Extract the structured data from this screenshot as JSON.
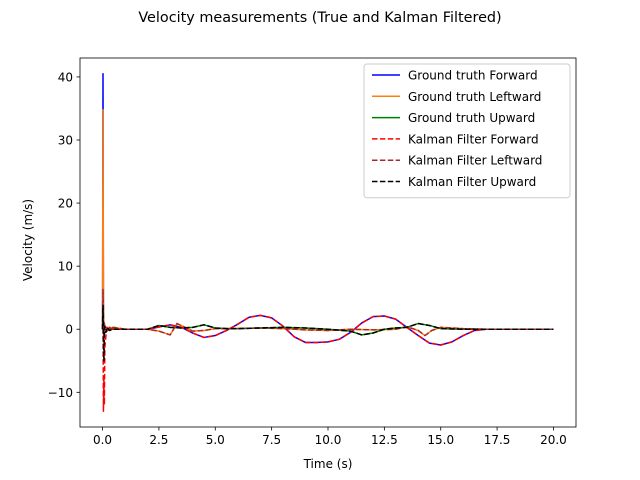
{
  "chart_data": {
    "type": "line",
    "title": "Velocity measurements (True and Kalman Filtered)",
    "xlabel": "Time (s)",
    "ylabel": "Velocity (m/s)",
    "xlim": [
      -1.0,
      21.0
    ],
    "ylim": [
      -15.5,
      43.0
    ],
    "xticks": [
      0.0,
      2.5,
      5.0,
      7.5,
      10.0,
      12.5,
      15.0,
      17.5,
      20.0
    ],
    "xtick_labels": [
      "0.0",
      "2.5",
      "5.0",
      "7.5",
      "10.0",
      "12.5",
      "15.0",
      "17.5",
      "20.0"
    ],
    "yticks": [
      -10,
      0,
      10,
      20,
      30,
      40
    ],
    "ytick_labels": [
      "−10",
      "0",
      "10",
      "20",
      "30",
      "40"
    ],
    "grid": false,
    "legend_position": "top-right",
    "series": [
      {
        "name": "Ground truth Forward",
        "color": "#0000ff",
        "style": "solid",
        "x": [
          0,
          0.02,
          0.04,
          0.06,
          0.08,
          0.1,
          0.2,
          0.3,
          0.5,
          1.0,
          2.0,
          3.0,
          3.5,
          4.0,
          4.5,
          5.0,
          5.5,
          6.0,
          6.5,
          7.0,
          7.5,
          8.0,
          8.5,
          9.0,
          9.5,
          10.0,
          10.5,
          11.0,
          11.5,
          12.0,
          12.5,
          13.0,
          13.5,
          14.0,
          14.5,
          15.0,
          15.5,
          16.0,
          16.5,
          17.0,
          18.0,
          19.0,
          20.0
        ],
        "y": [
          0,
          40.5,
          1.0,
          -1.5,
          0.5,
          0,
          0,
          0,
          0,
          0,
          0,
          0.7,
          0.3,
          -0.6,
          -1.3,
          -1.0,
          -0.2,
          0.8,
          1.9,
          2.2,
          1.8,
          0.5,
          -1.2,
          -2.1,
          -2.1,
          -2.0,
          -1.6,
          -0.5,
          1.0,
          2.0,
          2.1,
          1.6,
          0.3,
          -1.0,
          -2.2,
          -2.5,
          -2.0,
          -1.0,
          -0.2,
          0,
          0,
          0,
          0
        ]
      },
      {
        "name": "Ground truth Leftward",
        "color": "#ff7f0e",
        "style": "solid",
        "x": [
          0,
          0.02,
          0.04,
          0.06,
          0.08,
          0.1,
          0.3,
          0.5,
          1.0,
          2.0,
          2.5,
          3.0,
          3.3,
          3.6,
          4.0,
          4.5,
          5.0,
          6.0,
          7.0,
          8.0,
          9.0,
          10.0,
          11.0,
          12.0,
          13.0,
          13.5,
          14.0,
          14.3,
          14.6,
          15.0,
          16.0,
          17.0,
          18.0,
          19.0,
          20.0
        ],
        "y": [
          0,
          34.8,
          2.0,
          -1.0,
          0.3,
          0,
          0,
          0.3,
          0,
          0,
          -0.3,
          -0.9,
          0.9,
          0.4,
          -0.3,
          -0.2,
          0.1,
          0.1,
          0.2,
          0.1,
          -0.1,
          -0.2,
          0,
          -0.1,
          0,
          0.4,
          -0.2,
          -1.0,
          -0.2,
          0.3,
          0.1,
          0,
          0,
          0,
          0
        ]
      },
      {
        "name": "Ground truth Upward",
        "color": "#008000",
        "style": "solid",
        "x": [
          0,
          0.02,
          0.04,
          0.06,
          0.08,
          0.1,
          0.3,
          0.5,
          1.0,
          2.0,
          2.5,
          3.0,
          3.5,
          4.0,
          4.5,
          5.0,
          5.5,
          6.0,
          7.0,
          8.0,
          9.0,
          10.0,
          11.0,
          11.5,
          12.0,
          12.5,
          13.0,
          13.5,
          14.0,
          14.5,
          15.0,
          16.0,
          17.0,
          18.0,
          19.0,
          20.0
        ],
        "y": [
          0,
          3.2,
          1.2,
          -0.6,
          0.3,
          0,
          0,
          0,
          0,
          0,
          0.6,
          0.3,
          0.2,
          0.3,
          0.7,
          0.2,
          0.1,
          0.1,
          0.2,
          0.3,
          0.2,
          0,
          -0.3,
          -0.9,
          -0.6,
          0,
          0.2,
          0.3,
          0.9,
          0.6,
          0.1,
          0,
          0,
          0,
          0,
          0
        ]
      },
      {
        "name": "Kalman Filter Forward",
        "color": "#ff0000",
        "style": "dashed",
        "x": [
          0,
          0.02,
          0.04,
          0.06,
          0.08,
          0.1,
          0.15,
          0.2,
          0.3,
          0.5,
          1.0,
          2.0,
          3.0,
          3.5,
          4.0,
          4.5,
          5.0,
          5.5,
          6.0,
          6.5,
          7.0,
          7.5,
          8.0,
          8.5,
          9.0,
          9.5,
          10.0,
          10.5,
          11.0,
          11.5,
          12.0,
          12.5,
          13.0,
          13.5,
          14.0,
          14.5,
          15.0,
          15.5,
          16.0,
          16.5,
          17.0,
          18.0,
          19.0,
          20.0
        ],
        "y": [
          0,
          2.0,
          -13.0,
          -8.0,
          -12.0,
          -3.0,
          -1.0,
          0.5,
          0.3,
          0,
          0,
          0,
          0.7,
          0.3,
          -0.6,
          -1.3,
          -1.0,
          -0.2,
          0.8,
          1.9,
          2.2,
          1.8,
          0.5,
          -1.2,
          -2.1,
          -2.1,
          -2.0,
          -1.6,
          -0.5,
          1.0,
          2.0,
          2.1,
          1.6,
          0.3,
          -1.0,
          -2.2,
          -2.5,
          -2.0,
          -1.0,
          -0.2,
          0,
          0,
          0,
          0
        ]
      },
      {
        "name": "Kalman Filter Leftward",
        "color": "#a52a2a",
        "style": "dashed",
        "x": [
          0,
          0.02,
          0.04,
          0.06,
          0.08,
          0.1,
          0.2,
          0.3,
          0.5,
          1.0,
          2.0,
          2.5,
          3.0,
          3.3,
          3.6,
          4.0,
          4.5,
          5.0,
          6.0,
          7.0,
          8.0,
          9.0,
          10.0,
          11.0,
          12.0,
          13.0,
          13.5,
          14.0,
          14.3,
          14.6,
          15.0,
          16.0,
          17.0,
          18.0,
          19.0,
          20.0
        ],
        "y": [
          0,
          6.3,
          3.0,
          -2.0,
          1.0,
          0.5,
          -0.3,
          0.2,
          0.3,
          0,
          0,
          -0.3,
          -0.9,
          0.9,
          0.4,
          -0.3,
          -0.2,
          0.1,
          0.1,
          0.2,
          0.1,
          -0.1,
          -0.2,
          0,
          -0.1,
          0,
          0.4,
          -0.2,
          -1.0,
          -0.2,
          0.3,
          0.1,
          0,
          0,
          0,
          0
        ]
      },
      {
        "name": "Kalman Filter Upward",
        "color": "#000000",
        "style": "dashed",
        "x": [
          0,
          0.02,
          0.04,
          0.06,
          0.08,
          0.1,
          0.15,
          0.2,
          0.3,
          0.5,
          1.0,
          2.0,
          2.5,
          3.0,
          3.5,
          4.0,
          4.5,
          5.0,
          5.5,
          6.0,
          7.0,
          8.0,
          9.0,
          10.0,
          11.0,
          11.5,
          12.0,
          12.5,
          13.0,
          13.5,
          14.0,
          14.5,
          15.0,
          16.0,
          17.0,
          18.0,
          19.0,
          20.0
        ],
        "y": [
          0,
          3.8,
          -2.0,
          -5.0,
          -1.0,
          0.5,
          -0.5,
          0.3,
          -0.2,
          0,
          0,
          0,
          0.6,
          0.3,
          0.2,
          0.3,
          0.7,
          0.2,
          0.1,
          0.1,
          0.2,
          0.3,
          0.2,
          0,
          -0.3,
          -0.9,
          -0.6,
          0,
          0.2,
          0.3,
          0.9,
          0.6,
          0.1,
          0,
          0,
          0,
          0,
          0
        ]
      }
    ]
  }
}
